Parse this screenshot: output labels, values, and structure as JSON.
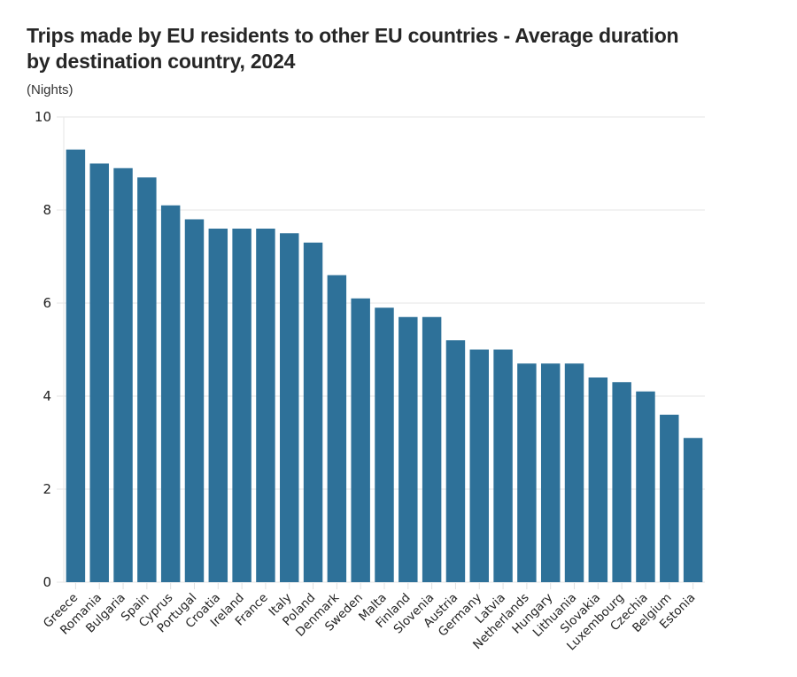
{
  "chart_data": {
    "type": "bar",
    "title": "Trips made by EU residents to other EU countries - Average duration by destination country, 2024",
    "unit_label": "(Nights)",
    "xlabel": "",
    "ylabel": "Nights",
    "ylim": [
      0,
      10
    ],
    "yticks": [
      0,
      2,
      4,
      6,
      8,
      10
    ],
    "grid": true,
    "legend": "none",
    "bar_color": "#2e7199",
    "categories": [
      "Greece",
      "Romania",
      "Bulgaria",
      "Spain",
      "Cyprus",
      "Portugal",
      "Croatia",
      "Ireland",
      "France",
      "Italy",
      "Poland",
      "Denmark",
      "Sweden",
      "Malta",
      "Finland",
      "Slovenia",
      "Austria",
      "Germany",
      "Latvia",
      "Netherlands",
      "Hungary",
      "Lithuania",
      "Slovakia",
      "Luxembourg",
      "Czechia",
      "Belgium",
      "Estonia"
    ],
    "values": [
      9.3,
      9.0,
      8.9,
      8.7,
      8.1,
      7.8,
      7.6,
      7.6,
      7.6,
      7.5,
      7.3,
      6.6,
      6.1,
      5.9,
      5.7,
      5.7,
      5.2,
      5.0,
      5.0,
      4.7,
      4.7,
      4.7,
      4.4,
      4.3,
      4.1,
      3.6,
      3.1
    ]
  }
}
